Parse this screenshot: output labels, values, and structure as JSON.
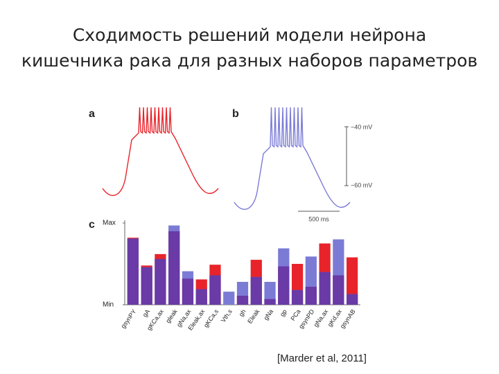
{
  "title_lines": [
    "Сходимость решений модели нейрона",
    "кишечника рака для разных наборов параметров"
  ],
  "citation": "[Marder et al, 2011]",
  "scale_bar": {
    "top": "−40 mV",
    "bottom": "−60 mV",
    "time": "500 ms"
  },
  "panel_c_label": "c",
  "chart_data": {
    "type": "bar",
    "categories": [
      "gsynPY",
      "gA",
      "gKCa,ax",
      "gleak",
      "gNa,ax",
      "Eleak,ax",
      "gKCa,s",
      "Vth,s",
      "gh",
      "Eleak",
      "gNa",
      "gp",
      "PCa",
      "gsynPD",
      "gNa,ax",
      "gKd,ax",
      "gsynAB"
    ],
    "series": [
      {
        "name": "a",
        "color": "#e8232a",
        "values": [
          0.82,
          0.48,
          0.62,
          0.9,
          0.32,
          0.31,
          0.49,
          0,
          0.11,
          0.55,
          0.07,
          0.47,
          0.5,
          0.22,
          0.75,
          0.36,
          0.58
        ]
      },
      {
        "name": "b",
        "color": "#7b7bd6",
        "values": [
          0.81,
          0.46,
          0.56,
          0.97,
          0.41,
          0.19,
          0.36,
          0.16,
          0.28,
          0.34,
          0.28,
          0.69,
          0.18,
          0.59,
          0.4,
          0.8,
          0.13
        ]
      }
    ],
    "overlap_color": "#6a3aa6",
    "ylim": [
      0,
      1
    ],
    "yticks": [
      {
        "value": 0,
        "label": "Min"
      },
      {
        "value": 1,
        "label": "Max"
      }
    ]
  }
}
